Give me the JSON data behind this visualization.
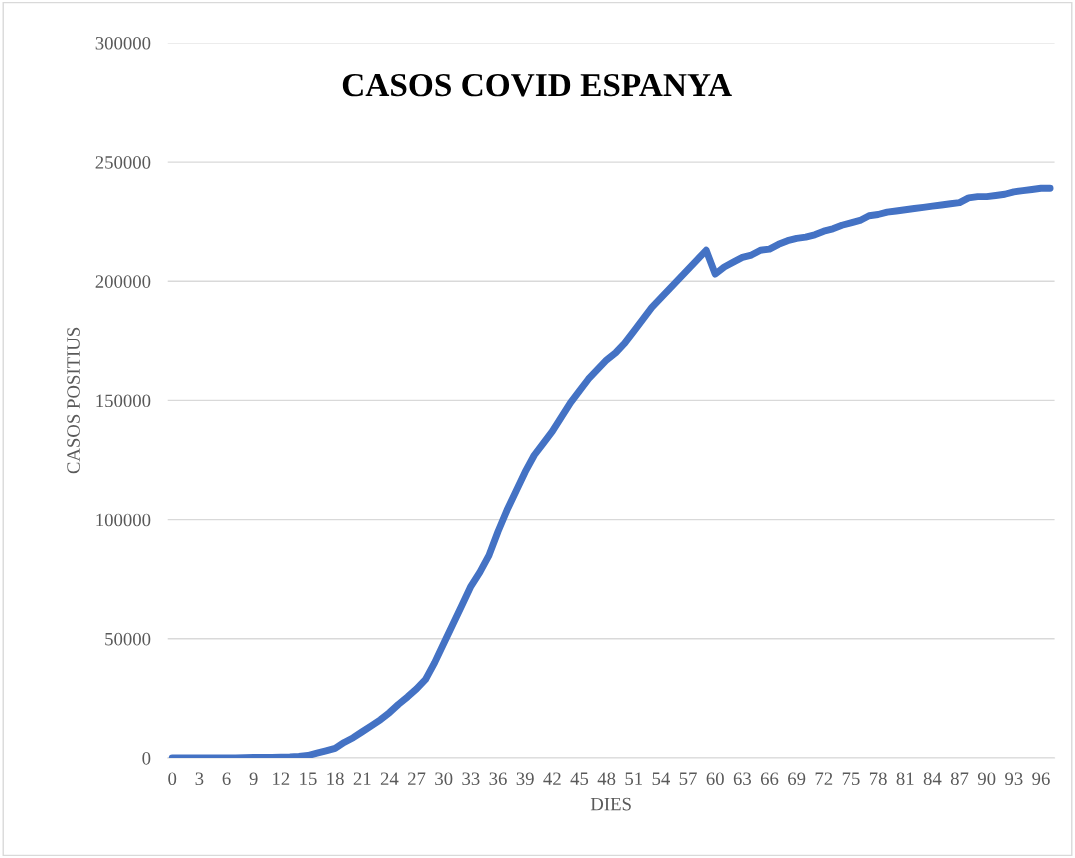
{
  "chart_data": {
    "type": "line",
    "title": "CASOS COVID ESPANYA",
    "xlabel": "DIES",
    "ylabel": "CASOS POSITIUS",
    "x": [
      0,
      1,
      2,
      3,
      4,
      5,
      6,
      7,
      8,
      9,
      10,
      11,
      12,
      13,
      14,
      15,
      16,
      17,
      18,
      19,
      20,
      21,
      22,
      23,
      24,
      25,
      26,
      27,
      28,
      29,
      30,
      31,
      32,
      33,
      34,
      35,
      36,
      37,
      38,
      39,
      40,
      41,
      42,
      43,
      44,
      45,
      46,
      47,
      48,
      49,
      50,
      51,
      52,
      53,
      54,
      55,
      56,
      57,
      58,
      59,
      60,
      61,
      62,
      63,
      64,
      65,
      66,
      67,
      68,
      69,
      70,
      71,
      72,
      73,
      74,
      75,
      76,
      77,
      78,
      79,
      80,
      81,
      82,
      83,
      84,
      85,
      86,
      87,
      88,
      89,
      90,
      91,
      92,
      93,
      94,
      95,
      96,
      97
    ],
    "series": [
      {
        "color": "#4472c4",
        "values": [
          0,
          0,
          0,
          0,
          0,
          0,
          0,
          0,
          100,
          200,
          200,
          200,
          300,
          400,
          600,
          1000,
          2000,
          3000,
          4000,
          6500,
          8500,
          11000,
          13500,
          16000,
          19000,
          22500,
          25600,
          29000,
          33000,
          40000,
          48000,
          56000,
          64000,
          72000,
          78000,
          85000,
          95000,
          104000,
          112000,
          120000,
          127000,
          132000,
          137000,
          143000,
          149000,
          154000,
          159000,
          163000,
          167000,
          170000,
          174000,
          179000,
          184000,
          189000,
          193000,
          197000,
          201000,
          205000,
          209000,
          213000,
          203000,
          206000,
          208000,
          210000,
          211000,
          213000,
          213500,
          215500,
          217000,
          218000,
          218500,
          219500,
          221000,
          222000,
          223500,
          224500,
          225500,
          227500,
          228000,
          229000,
          229500,
          230000,
          230500,
          231000,
          231500,
          232000,
          232500,
          233000,
          235000,
          235500,
          235500,
          236000,
          236500,
          237500,
          238000,
          238500,
          239000,
          239000
        ]
      }
    ],
    "xlim": [
      -0.5,
      97.5
    ],
    "xticks": [
      0,
      3,
      6,
      9,
      12,
      15,
      18,
      21,
      24,
      27,
      30,
      33,
      36,
      39,
      42,
      45,
      48,
      51,
      54,
      57,
      60,
      63,
      66,
      69,
      72,
      75,
      78,
      81,
      84,
      87,
      90,
      93,
      96
    ],
    "ylim": [
      0,
      300000
    ],
    "yticks": [
      0,
      50000,
      100000,
      150000,
      200000,
      250000,
      300000
    ],
    "grid": "y",
    "marker": "none",
    "line_style": "solid"
  }
}
